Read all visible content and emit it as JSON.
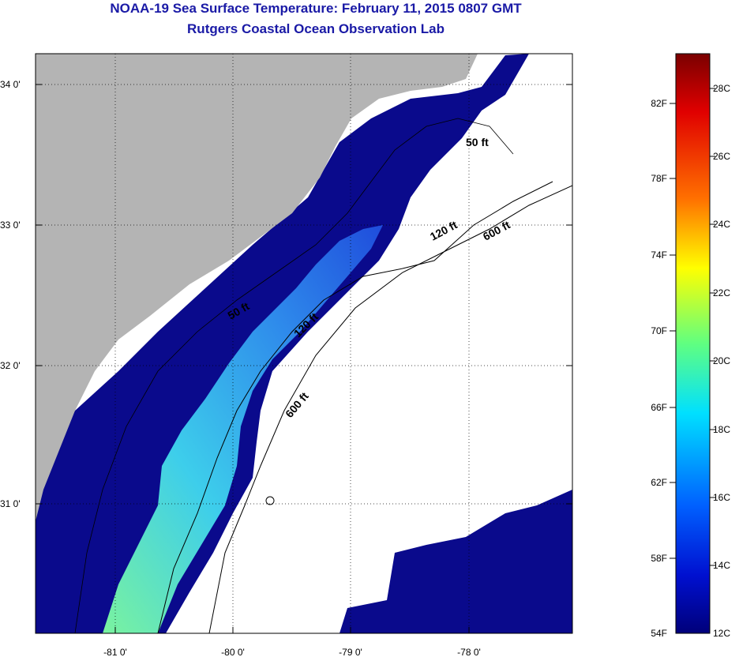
{
  "header": {
    "title": "NOAA-19 Sea Surface Temperature:  February 11, 2015 0807 GMT",
    "subtitle": "Rutgers Coastal Ocean Observation Lab"
  },
  "map": {
    "lon_ticks": [
      "-81 0'",
      "-80 0'",
      "-79 0'",
      "-78 0'"
    ],
    "lat_ticks": [
      "34 0'",
      "33 0'",
      "32 0'",
      "31 0'"
    ],
    "contour_labels": [
      "50 ft",
      "120 ft",
      "600 ft",
      "50 ft",
      "600 ft",
      "120 ft"
    ],
    "colors": {
      "land": "#b4b4b4",
      "cold": "#0a0a8c",
      "warm": "#30d8f0"
    }
  },
  "colorbar": {
    "fahrenheit_labels": [
      "82F",
      "78F",
      "74F",
      "70F",
      "66F",
      "62F",
      "58F",
      "54F"
    ],
    "celsius_labels": [
      "28C",
      "26C",
      "24C",
      "22C",
      "20C",
      "18C",
      "16C",
      "14C",
      "12C"
    ],
    "range_celsius": [
      12,
      29.5
    ]
  }
}
